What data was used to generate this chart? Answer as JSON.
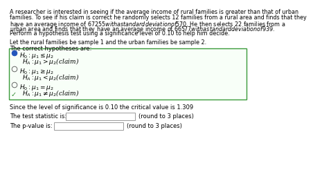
{
  "bg_color": "#ffffff",
  "text_color": "#000000",
  "paragraph_lines": [
    "A researcher is interested in seeing if the average income of rural families is greater than that of urban",
    "families. To see if his claim is correct he randomly selects 12 families from a rural area and finds that they",
    "have an average income of $67255 with a standard deviation of $570. He then selects 22 families from a",
    "urban area and finds that they have an average income of $66577 with a standard deviation of $939.",
    "Perform a hypothesis test using a significance level of 0.10 to help him decide."
  ],
  "let_line": "Let the rural families be sample 1 and the urban families be sample 2.",
  "correct_hyp_label": "The correct hypotheses are:",
  "box_border_color": "#3a9a3a",
  "radio_selected_color": "#2255bb",
  "h0_1": "$H_0 : \\mu_1 \\leq \\mu_2$",
  "ha_1": "$H_A : \\mu_1 > \\mu_2$(claim)",
  "h0_2": "$H_0 : \\mu_1 \\geq \\mu_2$",
  "ha_2": "$H_A : \\mu_1 < \\mu_2$(claim)",
  "h0_3": "$H_0 : \\mu_1 = \\mu_2$",
  "ha_3": "$H_A : \\mu_1 \\neq \\mu_2$(claim)",
  "checkmark": "✓",
  "since_line": "Since the level of significance is 0.10 the critical value is 1.309",
  "test_stat_label": "The test statistic is:",
  "pvalue_label": "The p-value is:",
  "round3": "(round to 3 places)",
  "font_size_para": 5.8,
  "font_size_label": 6.0,
  "font_size_hyp": 6.5,
  "font_size_bottom": 6.0
}
